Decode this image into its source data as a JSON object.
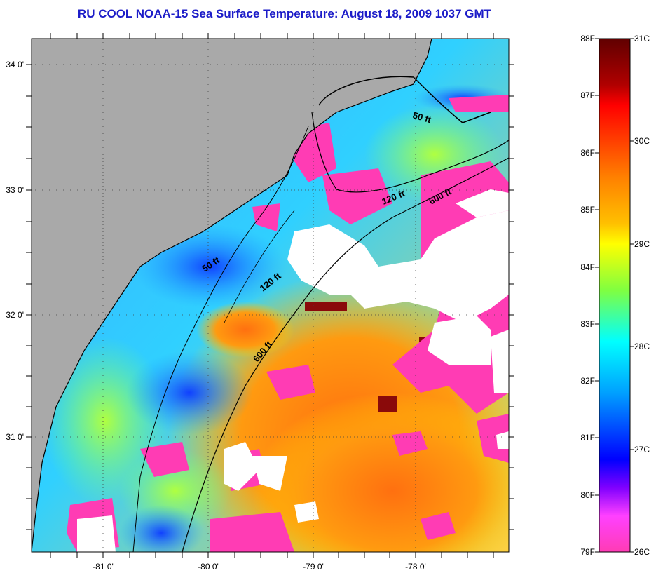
{
  "title": "RU COOL  NOAA-15  Sea Surface Temperature:  August 18, 2009 1037 GMT",
  "map": {
    "lon_ticks": [
      "-81 0'",
      "-80 0'",
      "-79 0'",
      "-78 0'"
    ],
    "lat_ticks": [
      "34 0'",
      "33 0'",
      "32 0'",
      "31 0'"
    ],
    "isobaths": [
      {
        "label": "50 ft",
        "segment": "north"
      },
      {
        "label": "120 ft",
        "segment": "north"
      },
      {
        "label": "600 ft",
        "segment": "north"
      },
      {
        "label": "50 ft",
        "segment": "south"
      },
      {
        "label": "120 ft",
        "segment": "south"
      },
      {
        "label": "600 ft",
        "segment": "south"
      }
    ],
    "colors": {
      "land": "#a9a9a9",
      "no_data": "#ffffff",
      "coastline": "#000000"
    }
  },
  "colorbar": {
    "fahrenheit_labels": [
      "88F",
      "87F",
      "86F",
      "85F",
      "84F",
      "83F",
      "82F",
      "81F",
      "80F",
      "79F"
    ],
    "celsius_labels": [
      "31C",
      "30C",
      "29C",
      "28C",
      "27C",
      "26C"
    ],
    "colors_top_to_bottom": [
      "#6b0000",
      "#ff0000",
      "#ff8000",
      "#ffff00",
      "#80ff40",
      "#00ffff",
      "#0080ff",
      "#0000ff",
      "#8000ff",
      "#ff40c0"
    ]
  }
}
